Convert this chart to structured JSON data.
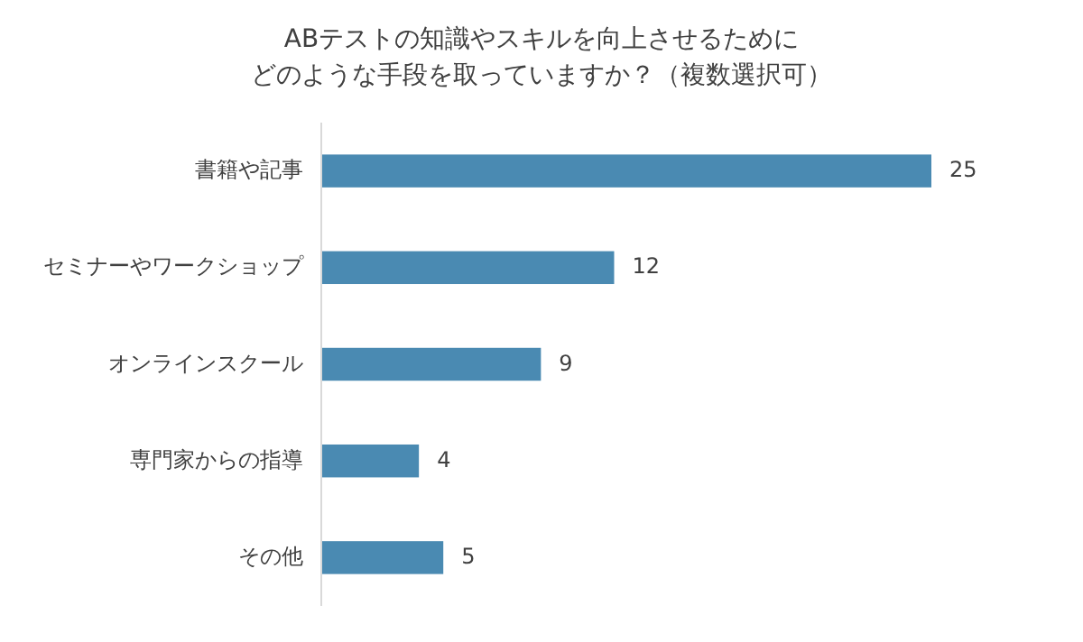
{
  "chart_data": {
    "type": "bar",
    "orientation": "horizontal",
    "title": "ABテストの知識やスキルを向上させるために",
    "subtitle": "どのような手段を取っていますか？（複数選択可）",
    "categories": [
      "書籍や記事",
      "セミナーやワークショップ",
      "オンラインスクール",
      "専門家からの指導",
      "その他"
    ],
    "values": [
      25,
      12,
      9,
      4,
      5
    ],
    "color": "#4a8ab2",
    "data_labels": true
  }
}
